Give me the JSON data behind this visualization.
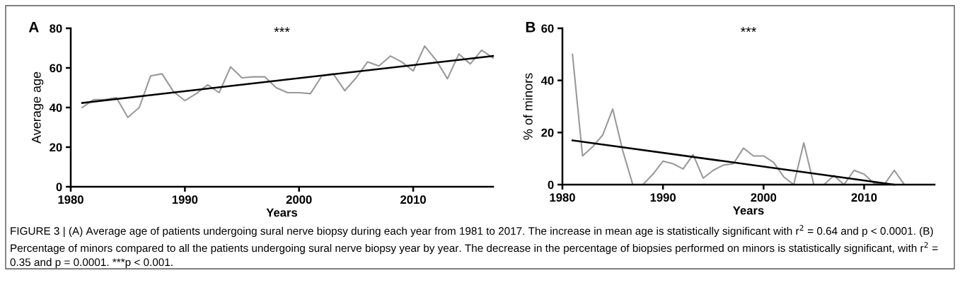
{
  "chart_data": [
    {
      "type": "line",
      "title": "A",
      "xlabel": "Years",
      "ylabel": "Average age",
      "xlim": [
        1980,
        2017
      ],
      "ylim": [
        0,
        80
      ],
      "xticks": [
        1980,
        1990,
        2000,
        2010
      ],
      "yticks": [
        0,
        20,
        40,
        60,
        80
      ],
      "marker": "none",
      "line_style": "solid",
      "annotations": [
        "***",
        "FIGURE 3 | (A) Average age of patients undergoing sural nerve biopsy during each year from 1981 to 2017. The increase in mean age is statistically significant with r$^{2}$ = 0.64 and p < 0.0001. (B) Percentage of minors compared to all the patients undergoing sural nerve biopsy year by year. The decrease in the percentage of biopsies performed on minors is statistically significant, with r$^{2}$ = 0.35 and p = 0.0001. ***p < 0.001."
      ],
      "series": [
        {
          "color": "#999999",
          "x": [
            1981,
            1982,
            1983,
            1984,
            1985,
            1986,
            1987,
            1988,
            1989,
            1990,
            1991,
            1992,
            1993,
            1994,
            1995,
            1996,
            1997,
            1998,
            1999,
            2000,
            2001,
            2002,
            2003,
            2004,
            2005,
            2006,
            2007,
            2008,
            2009,
            2010,
            2011,
            2012,
            2013,
            2014,
            2015,
            2016,
            2017
          ],
          "values": [
            40,
            44,
            44,
            45,
            35,
            40,
            56,
            57,
            48,
            43.5,
            47,
            51.5,
            47.5,
            60.5,
            55,
            55.5,
            55.5,
            50,
            47.5,
            47.5,
            47,
            56,
            57,
            48.5,
            55,
            63,
            61,
            66,
            63,
            58.5,
            71,
            64,
            54.5,
            67,
            62,
            69,
            65
          ]
        },
        {
          "type": "line",
          "color": "#000000",
          "x": [
            1981,
            2017
          ],
          "values": [
            42.3,
            66
          ]
        }
      ]
    },
    {
      "type": "line",
      "title": "B",
      "xlabel": "Years",
      "ylabel": "% of minors",
      "xlim": [
        1980,
        2017
      ],
      "ylim": [
        0,
        60
      ],
      "xticks": [
        1980,
        1990,
        2000,
        2010
      ],
      "yticks": [
        0,
        20,
        40,
        60
      ],
      "marker": "none",
      "line_style": "solid",
      "annotations": [
        "***"
      ],
      "series": [
        {
          "color": "#999999",
          "x": [
            1981,
            1982,
            1983,
            1984,
            1985,
            1986,
            1987,
            1988,
            1989,
            1990,
            1991,
            1992,
            1993,
            1994,
            1995,
            1996,
            1997,
            1998,
            1999,
            2000,
            2001,
            2002,
            2003,
            2004,
            2005,
            2006,
            2007,
            2008,
            2009,
            2010,
            2011,
            2012,
            2013,
            2014
          ],
          "values": [
            50,
            11,
            14.5,
            19,
            29,
            13,
            0,
            0,
            4,
            9,
            8,
            6,
            11.5,
            2.5,
            5.5,
            7.5,
            8,
            14,
            11,
            11,
            8.5,
            3,
            0,
            16,
            0,
            0,
            3.5,
            0,
            5.5,
            4,
            0.5,
            0,
            5.5,
            0
          ]
        },
        {
          "type": "line",
          "color": "#000000",
          "x": [
            1981,
            2013
          ],
          "values": [
            17,
            0
          ]
        }
      ]
    }
  ]
}
